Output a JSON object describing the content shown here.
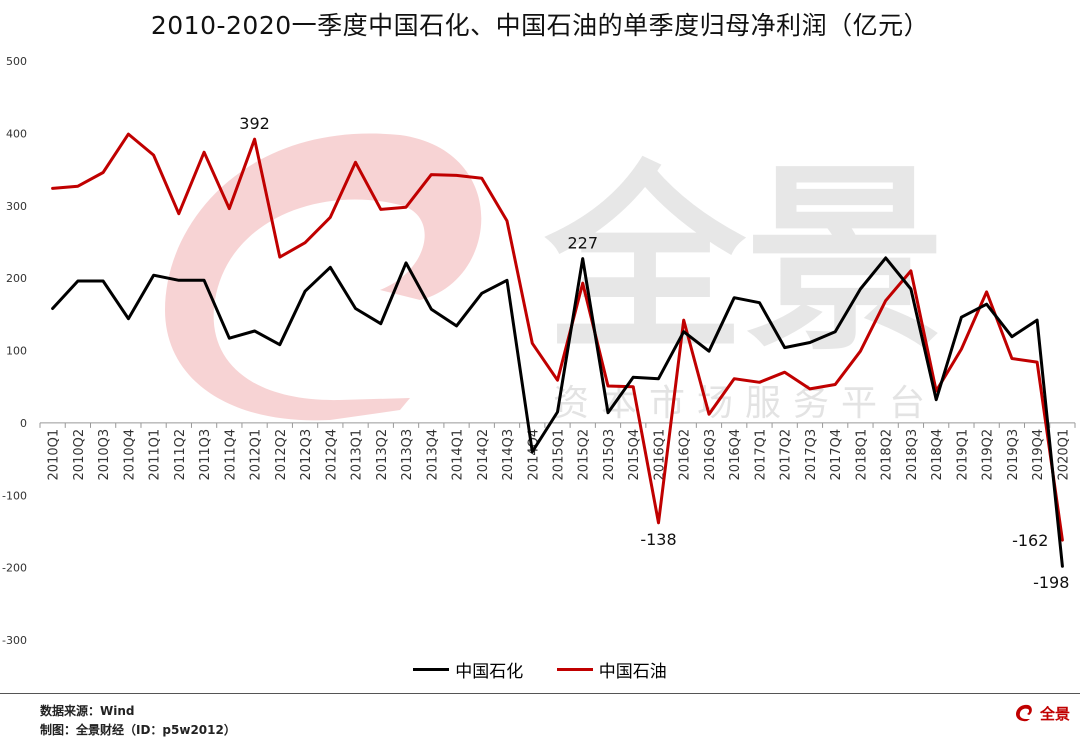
{
  "title": "2010-2020一季度中国石化、中国石油的单季度归母净利润（亿元）",
  "colors": {
    "sinopec": "#000000",
    "petrochina": "#c00000",
    "watermark": "#f2b5b8",
    "watermark_text": "#d8d8d8"
  },
  "legend": {
    "sinopec": "中国石化",
    "petrochina": "中国石油"
  },
  "watermark": {
    "main": "全景",
    "sub": "资本市场服务平台"
  },
  "footer": {
    "source": "数据来源：Wind",
    "maker": "制图：全景财经（ID：p5w2012）",
    "brand": "全景"
  },
  "chart_data": {
    "type": "line",
    "title": "2010-2020一季度中国石化、中国石油的单季度归母净利润（亿元）",
    "xlabel": "",
    "ylabel": "",
    "ylim": [
      -300,
      500
    ],
    "yticks": [
      -300,
      -200,
      -100,
      0,
      100,
      200,
      300,
      400,
      500
    ],
    "grid": false,
    "legend_position": "bottom",
    "categories": [
      "2010Q1",
      "2010Q2",
      "2010Q3",
      "2010Q4",
      "2011Q1",
      "2011Q2",
      "2011Q3",
      "2011Q4",
      "2012Q1",
      "2012Q2",
      "2012Q3",
      "2012Q4",
      "2013Q1",
      "2013Q2",
      "2013Q3",
      "2013Q4",
      "2014Q1",
      "2014Q2",
      "2014Q3",
      "2014Q4",
      "2015Q1",
      "2015Q2",
      "2015Q3",
      "2015Q4",
      "2016Q1",
      "2016Q2",
      "2016Q3",
      "2016Q4",
      "2017Q1",
      "2017Q2",
      "2017Q3",
      "2017Q4",
      "2018Q1",
      "2018Q2",
      "2018Q3",
      "2018Q4",
      "2019Q1",
      "2019Q2",
      "2019Q3",
      "2019Q4",
      "2020Q1"
    ],
    "series": [
      {
        "name": "中国石化",
        "color": "#000000",
        "values": [
          158,
          196,
          196,
          144,
          204,
          197,
          197,
          117,
          127,
          108,
          182,
          215,
          158,
          137,
          221,
          157,
          134,
          179,
          197,
          -40,
          15,
          227,
          14,
          63,
          61,
          126,
          99,
          173,
          166,
          104,
          111,
          126,
          185,
          228,
          185,
          32,
          146,
          164,
          119,
          142,
          -198
        ]
      },
      {
        "name": "中国石油",
        "color": "#c00000",
        "values": [
          324,
          327,
          346,
          399,
          370,
          289,
          374,
          296,
          392,
          229,
          249,
          284,
          360,
          295,
          298,
          343,
          342,
          338,
          279,
          110,
          59,
          193,
          51,
          50,
          -138,
          142,
          12,
          61,
          56,
          70,
          47,
          53,
          99,
          169,
          210,
          44,
          102,
          181,
          89,
          84,
          -162
        ]
      }
    ],
    "annotations": [
      {
        "series": 1,
        "index": 8,
        "text": "392",
        "pos": "above"
      },
      {
        "series": 0,
        "index": 21,
        "text": "227",
        "pos": "above"
      },
      {
        "series": 1,
        "index": 24,
        "text": "-138",
        "pos": "below"
      },
      {
        "series": 1,
        "index": 40,
        "text": "-162",
        "pos": "left"
      },
      {
        "series": 0,
        "index": 40,
        "text": "-198",
        "pos": "below"
      }
    ]
  }
}
